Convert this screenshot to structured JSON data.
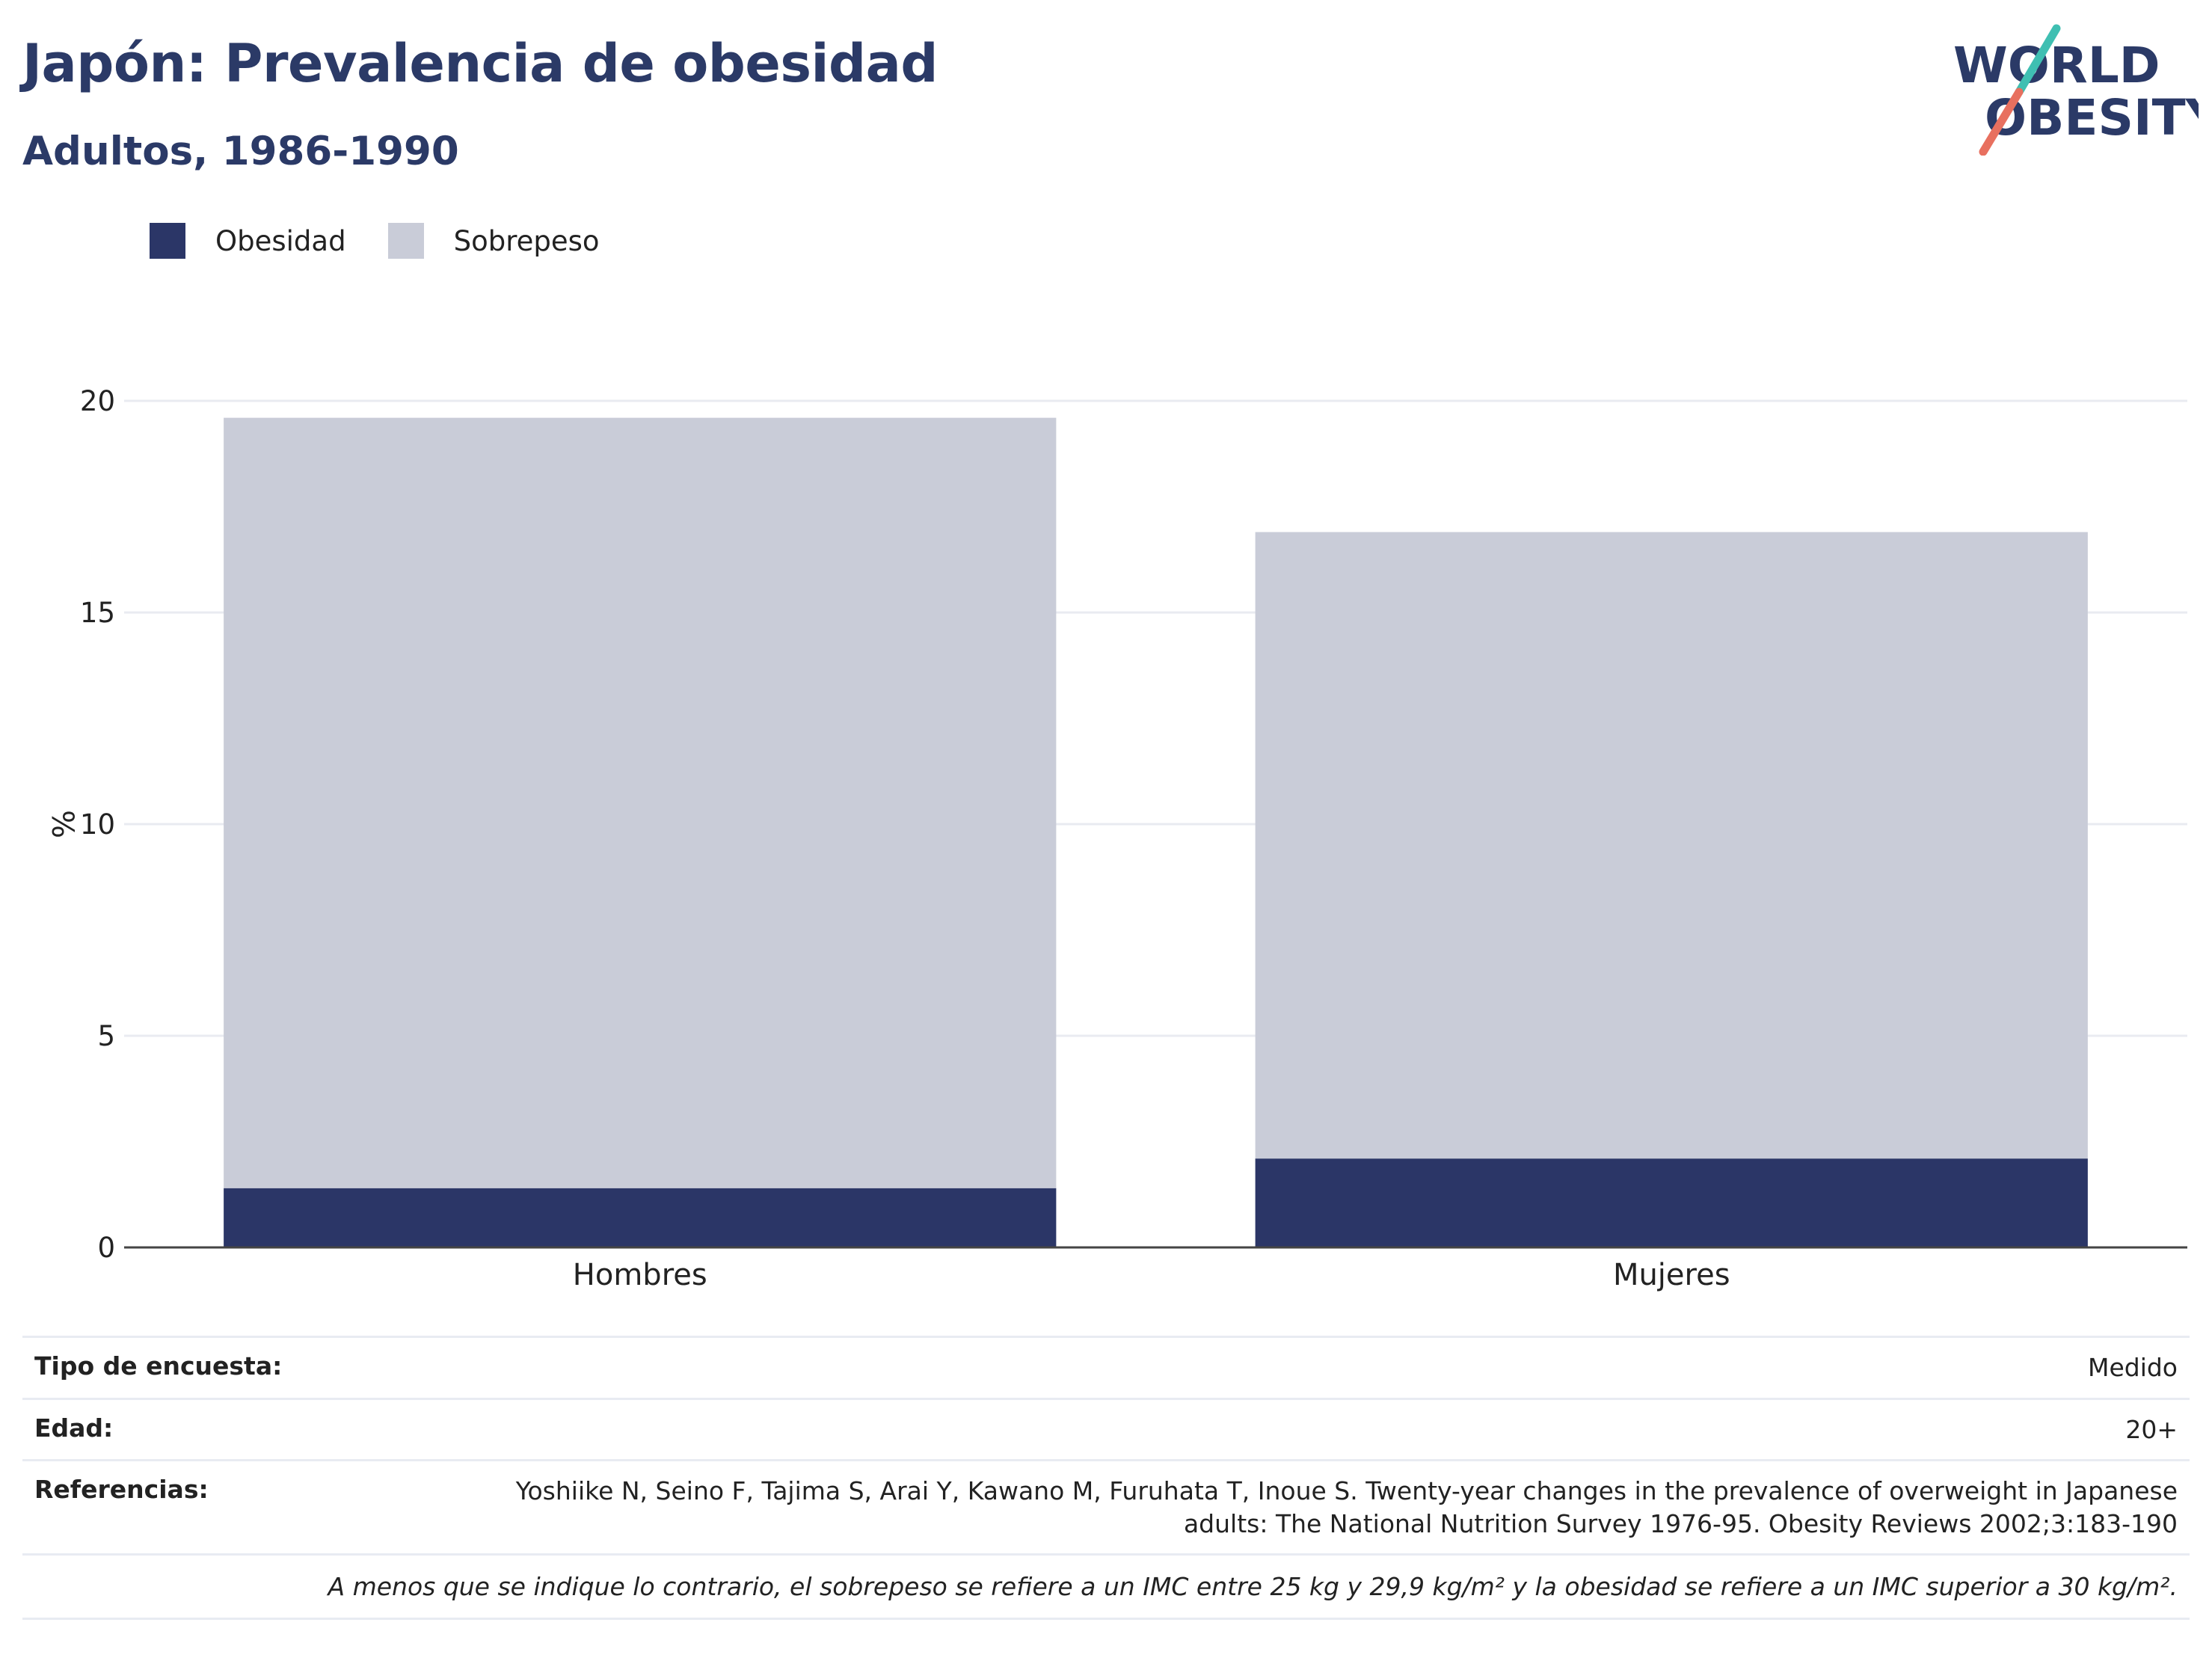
{
  "header": {
    "title": "Japón: Prevalencia de obesidad",
    "subtitle": "Adultos, 1986-1990"
  },
  "logo": {
    "line1": "WORLD",
    "line2": "OBESITY",
    "colors": {
      "text": "#2b3a67",
      "slash_top": "#3fbfb2",
      "slash_bottom": "#e8705f"
    }
  },
  "legend": [
    {
      "label": "Obesidad",
      "color": "#2b3667"
    },
    {
      "label": "Sobrepeso",
      "color": "#c9ccd8"
    }
  ],
  "chart_data": {
    "type": "bar",
    "stacked": true,
    "categories": [
      "Hombres",
      "Mujeres"
    ],
    "series": [
      {
        "name": "Obesidad",
        "color": "#2b3667",
        "values": [
          1.4,
          2.1
        ]
      },
      {
        "name": "Sobrepeso",
        "color": "#c9ccd8",
        "values": [
          18.2,
          14.8
        ]
      }
    ],
    "ylabel": "%",
    "ylim": [
      0,
      20
    ],
    "yticks": [
      0,
      5,
      10,
      15,
      20
    ],
    "grid": true,
    "legend_position": "top-left"
  },
  "info": {
    "rows": [
      {
        "key": "Tipo de encuesta:",
        "value": "Medido"
      },
      {
        "key": "Edad:",
        "value": "20+"
      },
      {
        "key": "Referencias:",
        "value_line1": "Yoshiike N, Seino F, Tajima S, Arai Y, Kawano M, Furuhata T, Inoue S. Twenty-year changes in the prevalence of overweight in Japanese",
        "value_line2": "adults: The National Nutrition Survey 1976-95. Obesity Reviews 2002;3:183-190"
      }
    ],
    "footnote": "A menos que se indique lo contrario, el sobrepeso se refiere a un IMC entre 25 kg y 29,9 kg/m² y la obesidad se refiere a un IMC superior a 30 kg/m²."
  }
}
